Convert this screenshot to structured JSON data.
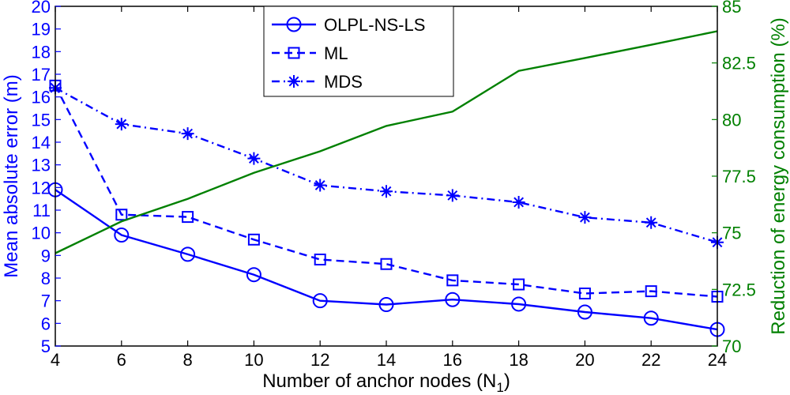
{
  "chart_data": {
    "type": "line",
    "x": [
      4,
      6,
      8,
      10,
      12,
      14,
      16,
      18,
      20,
      22,
      24
    ],
    "xlabel_main": "Number of anchor nodes (N",
    "xlabel_sub": "1",
    "xlabel_close": ")",
    "xlim": [
      4,
      24
    ],
    "xticks": [
      4,
      6,
      8,
      10,
      12,
      14,
      16,
      18,
      20,
      22,
      24
    ],
    "ylabel_left": "Mean absolute error (m)",
    "ylim_left": [
      5,
      20
    ],
    "yticks_left": [
      5,
      6,
      7,
      8,
      9,
      10,
      11,
      12,
      13,
      14,
      15,
      16,
      17,
      18,
      19,
      20
    ],
    "ylabel_right": "Reduction of energy consumption (%)",
    "ylim_right": [
      70,
      85
    ],
    "yticks_right": [
      "70",
      "72.5",
      "75",
      "77.5",
      "80",
      "82.5",
      "85"
    ],
    "yticks_right_values": [
      70,
      72.5,
      75,
      77.5,
      80,
      82.5,
      85
    ],
    "series": [
      {
        "name": "OLPL-NS-LS",
        "axis": "left",
        "color": "#0000ff",
        "line": "solid",
        "marker": "circle",
        "values": [
          11.9,
          9.9,
          9.05,
          8.15,
          7.0,
          6.83,
          7.05,
          6.85,
          6.5,
          6.23,
          5.73
        ]
      },
      {
        "name": "ML",
        "axis": "left",
        "color": "#0000ff",
        "line": "dashed",
        "marker": "square",
        "values": [
          16.5,
          10.8,
          10.7,
          9.7,
          8.82,
          8.62,
          7.9,
          7.72,
          7.32,
          7.42,
          7.18
        ]
      },
      {
        "name": "MDS",
        "axis": "left",
        "color": "#0000ff",
        "line": "dashdot",
        "marker": "star",
        "values": [
          16.4,
          14.8,
          14.38,
          13.28,
          12.1,
          11.83,
          11.65,
          11.35,
          10.68,
          10.45,
          9.58
        ]
      },
      {
        "name": "Energy reduction",
        "axis": "right",
        "color": "#008000",
        "line": "solid",
        "marker": "none",
        "values": [
          74.1,
          75.5,
          76.5,
          77.65,
          78.6,
          79.72,
          80.35,
          82.15,
          82.72,
          83.3,
          83.9
        ]
      }
    ],
    "legend": [
      "OLPL-NS-LS",
      "ML",
      "MDS"
    ],
    "legend_position": "top-center"
  }
}
